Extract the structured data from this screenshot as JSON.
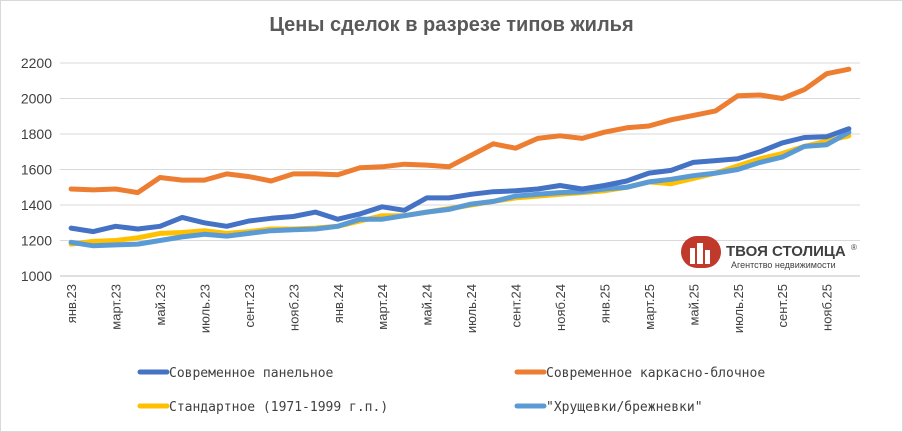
{
  "chart_data": {
    "type": "line",
    "title": "Цены сделок в разрезе типов жилья",
    "xlabel": "",
    "ylabel": "",
    "ylim": [
      1000,
      2200
    ],
    "yticks": [
      "1000",
      "1200",
      "1400",
      "1600",
      "1800",
      "2000",
      "2200"
    ],
    "grid": "horizontal",
    "legend_position": "bottom",
    "x_tick_labels": [
      "янв.23",
      "март.23",
      "май.23",
      "июль.23",
      "сент.23",
      "нояб.23",
      "янв.24",
      "март.24",
      "май.24",
      "июль.24",
      "сент.24",
      "нояб.24",
      "янв.25",
      "март.25",
      "май.25",
      "июль.25",
      "сент.25",
      "нояб.25"
    ],
    "categories": [
      "янв.23",
      "фев.23",
      "март.23",
      "апр.23",
      "май.23",
      "июнь.23",
      "июль.23",
      "авг.23",
      "сент.23",
      "окт.23",
      "нояб.23",
      "дек.23",
      "янв.24",
      "фев.24",
      "март.24",
      "апр.24",
      "май.24",
      "июнь.24",
      "июль.24",
      "авг.24",
      "сент.24",
      "окт.24",
      "нояб.24",
      "дек.24",
      "янв.25",
      "фев.25",
      "март.25",
      "апр.25",
      "май.25",
      "июнь.25",
      "июль.25",
      "авг.25",
      "сент.25",
      "окт.25",
      "нояб.25",
      "дек.25"
    ],
    "series": [
      {
        "name": "Стандартное (1971-1999 г.п.)",
        "color": "#ffc000",
        "values": [
          1180,
          1195,
          1200,
          1215,
          1240,
          1245,
          1255,
          1240,
          1250,
          1265,
          1265,
          1270,
          1280,
          1310,
          1340,
          1340,
          1360,
          1380,
          1400,
          1420,
          1440,
          1450,
          1460,
          1470,
          1480,
          1500,
          1530,
          1520,
          1550,
          1580,
          1620,
          1660,
          1690,
          1730,
          1760,
          1790
        ]
      },
      {
        "name": "\"Хрущевки/брежневки\"",
        "color": "#5b9bd5",
        "values": [
          1190,
          1170,
          1175,
          1180,
          1200,
          1220,
          1235,
          1225,
          1240,
          1255,
          1260,
          1265,
          1280,
          1320,
          1320,
          1340,
          1360,
          1375,
          1405,
          1420,
          1450,
          1460,
          1470,
          1475,
          1490,
          1500,
          1530,
          1545,
          1565,
          1580,
          1600,
          1640,
          1670,
          1730,
          1740,
          1810
        ]
      },
      {
        "name": "Современное панельное",
        "color": "#4472c4",
        "values": [
          1270,
          1250,
          1280,
          1265,
          1280,
          1330,
          1300,
          1280,
          1310,
          1325,
          1335,
          1360,
          1320,
          1350,
          1390,
          1370,
          1440,
          1440,
          1460,
          1475,
          1480,
          1490,
          1510,
          1490,
          1510,
          1535,
          1580,
          1595,
          1640,
          1650,
          1660,
          1700,
          1750,
          1780,
          1785,
          1830
        ]
      },
      {
        "name": "Современное каркасно-блочное",
        "color": "#ed7d31",
        "values": [
          1490,
          1485,
          1490,
          1470,
          1555,
          1540,
          1540,
          1575,
          1560,
          1535,
          1575,
          1575,
          1570,
          1610,
          1615,
          1630,
          1625,
          1615,
          1680,
          1745,
          1720,
          1775,
          1790,
          1775,
          1810,
          1835,
          1845,
          1880,
          1905,
          1930,
          2015,
          2020,
          2000,
          2050,
          2140,
          2165
        ]
      }
    ]
  },
  "legend": {
    "item_1": "Современное панельное",
    "item_2": "Современное каркасно-блочное",
    "item_3": "Стандартное (1971-1999 г.п.)",
    "item_4": "\"Хрущевки/брежневки\""
  },
  "logo": {
    "name": "ТВОЯ СТОЛИЦА",
    "tagline": "Агентство недвижимости",
    "color": "#c0392b"
  }
}
